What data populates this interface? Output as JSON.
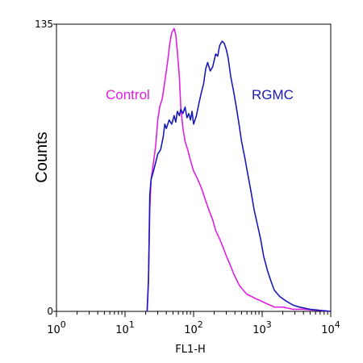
{
  "chart_data": {
    "type": "line",
    "title": "",
    "xlabel": "FL1-H",
    "ylabel": "Counts",
    "x_scale": "log",
    "xlim": [
      1,
      10000
    ],
    "ylim": [
      0,
      135
    ],
    "y_ticks": [
      {
        "value": 0,
        "label": "0"
      },
      {
        "value": 135,
        "label": "135"
      }
    ],
    "x_ticks": [
      {
        "value": 1,
        "base": "10",
        "exp": "0"
      },
      {
        "value": 10,
        "base": "10",
        "exp": "1"
      },
      {
        "value": 100,
        "base": "10",
        "exp": "2"
      },
      {
        "value": 1000,
        "base": "10",
        "exp": "3"
      },
      {
        "value": 10000,
        "base": "10",
        "exp": "4"
      }
    ],
    "grid": false,
    "series": [
      {
        "name": "Control",
        "color": "#e020e0",
        "points": [
          [
            21,
            0
          ],
          [
            22,
            15
          ],
          [
            23,
            48
          ],
          [
            24,
            62
          ],
          [
            26,
            70
          ],
          [
            28,
            78
          ],
          [
            30,
            90
          ],
          [
            32,
            96
          ],
          [
            35,
            100
          ],
          [
            38,
            108
          ],
          [
            42,
            118
          ],
          [
            45,
            126
          ],
          [
            48,
            131
          ],
          [
            52,
            133
          ],
          [
            55,
            130
          ],
          [
            58,
            122
          ],
          [
            62,
            110
          ],
          [
            65,
            96
          ],
          [
            70,
            86
          ],
          [
            75,
            80
          ],
          [
            82,
            76
          ],
          [
            90,
            71
          ],
          [
            100,
            66
          ],
          [
            115,
            62
          ],
          [
            130,
            58
          ],
          [
            150,
            52
          ],
          [
            170,
            47
          ],
          [
            190,
            43
          ],
          [
            210,
            38
          ],
          [
            240,
            34
          ],
          [
            270,
            30
          ],
          [
            300,
            26
          ],
          [
            340,
            22
          ],
          [
            380,
            18
          ],
          [
            420,
            15
          ],
          [
            470,
            12
          ],
          [
            530,
            10
          ],
          [
            600,
            8
          ],
          [
            700,
            7
          ],
          [
            800,
            6
          ],
          [
            950,
            5
          ],
          [
            1100,
            4
          ],
          [
            1300,
            3
          ],
          [
            1500,
            2
          ],
          [
            2000,
            2
          ],
          [
            2800,
            1
          ],
          [
            4000,
            1
          ],
          [
            10000,
            0
          ]
        ]
      },
      {
        "name": "RGMC",
        "color": "#1a1ab8",
        "points": [
          [
            21,
            0
          ],
          [
            22,
            15
          ],
          [
            23,
            55
          ],
          [
            24,
            62
          ],
          [
            26,
            66
          ],
          [
            28,
            70
          ],
          [
            30,
            74
          ],
          [
            33,
            76
          ],
          [
            36,
            82
          ],
          [
            38,
            88
          ],
          [
            40,
            86
          ],
          [
            44,
            90
          ],
          [
            48,
            88
          ],
          [
            52,
            92
          ],
          [
            55,
            89
          ],
          [
            58,
            94
          ],
          [
            62,
            92
          ],
          [
            65,
            95
          ],
          [
            70,
            93
          ],
          [
            75,
            96
          ],
          [
            80,
            91
          ],
          [
            85,
            93
          ],
          [
            90,
            90
          ],
          [
            95,
            94
          ],
          [
            100,
            88
          ],
          [
            110,
            92
          ],
          [
            120,
            98
          ],
          [
            130,
            103
          ],
          [
            140,
            107
          ],
          [
            150,
            114
          ],
          [
            160,
            117
          ],
          [
            175,
            113
          ],
          [
            190,
            115
          ],
          [
            210,
            121
          ],
          [
            225,
            120
          ],
          [
            240,
            125
          ],
          [
            260,
            127
          ],
          [
            280,
            126
          ],
          [
            300,
            123
          ],
          [
            320,
            119
          ],
          [
            350,
            110
          ],
          [
            380,
            104
          ],
          [
            420,
            96
          ],
          [
            460,
            88
          ],
          [
            500,
            80
          ],
          [
            560,
            72
          ],
          [
            620,
            64
          ],
          [
            690,
            56
          ],
          [
            760,
            48
          ],
          [
            850,
            41
          ],
          [
            950,
            34
          ],
          [
            1050,
            26
          ],
          [
            1200,
            19
          ],
          [
            1350,
            14
          ],
          [
            1500,
            10
          ],
          [
            1800,
            7
          ],
          [
            2200,
            5
          ],
          [
            2800,
            3
          ],
          [
            3500,
            2
          ],
          [
            5000,
            1
          ],
          [
            10000,
            0
          ]
        ]
      }
    ],
    "annotations": [
      {
        "text": "Control",
        "color": "#e020e0",
        "series": "Control"
      },
      {
        "text": "RGMC",
        "color": "#1a1ab8",
        "series": "RGMC"
      }
    ]
  }
}
